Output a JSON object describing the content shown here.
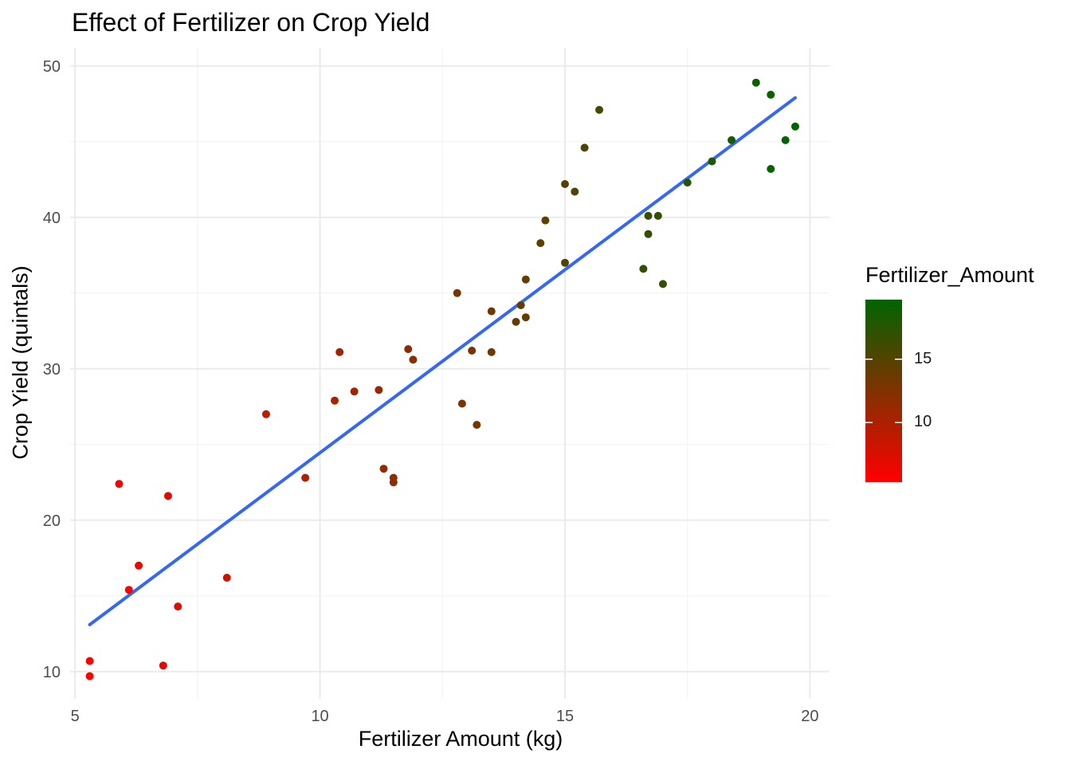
{
  "chart_data": {
    "type": "scatter",
    "title": "Effect of Fertilizer on Crop Yield",
    "xlabel": "Fertilizer Amount (kg)",
    "ylabel": "Crop Yield (quintals)",
    "xlim": [
      4.9,
      20.4
    ],
    "ylim": [
      8.2,
      51.2
    ],
    "x_ticks": [
      5,
      10,
      15,
      20
    ],
    "y_ticks": [
      10,
      20,
      30,
      40,
      50
    ],
    "grid": true,
    "points": [
      {
        "x": 5.3,
        "y": 10.7
      },
      {
        "x": 5.3,
        "y": 9.7
      },
      {
        "x": 5.9,
        "y": 22.4
      },
      {
        "x": 6.1,
        "y": 15.4
      },
      {
        "x": 6.3,
        "y": 17.0
      },
      {
        "x": 6.8,
        "y": 10.4
      },
      {
        "x": 6.9,
        "y": 21.6
      },
      {
        "x": 7.1,
        "y": 14.3
      },
      {
        "x": 8.1,
        "y": 16.2
      },
      {
        "x": 8.9,
        "y": 27.0
      },
      {
        "x": 9.7,
        "y": 22.8
      },
      {
        "x": 10.3,
        "y": 27.9
      },
      {
        "x": 10.4,
        "y": 31.1
      },
      {
        "x": 10.7,
        "y": 28.5
      },
      {
        "x": 11.2,
        "y": 28.6
      },
      {
        "x": 11.3,
        "y": 23.4
      },
      {
        "x": 11.5,
        "y": 22.8
      },
      {
        "x": 11.5,
        "y": 22.5
      },
      {
        "x": 11.8,
        "y": 31.3
      },
      {
        "x": 11.9,
        "y": 30.6
      },
      {
        "x": 12.8,
        "y": 35.0
      },
      {
        "x": 12.9,
        "y": 27.7
      },
      {
        "x": 13.1,
        "y": 31.2
      },
      {
        "x": 13.2,
        "y": 26.3
      },
      {
        "x": 13.5,
        "y": 33.8
      },
      {
        "x": 13.5,
        "y": 31.1
      },
      {
        "x": 14.0,
        "y": 33.1
      },
      {
        "x": 14.1,
        "y": 34.2
      },
      {
        "x": 14.2,
        "y": 35.9
      },
      {
        "x": 14.2,
        "y": 33.4
      },
      {
        "x": 14.5,
        "y": 38.3
      },
      {
        "x": 14.6,
        "y": 39.8
      },
      {
        "x": 15.0,
        "y": 42.2
      },
      {
        "x": 15.0,
        "y": 37.0
      },
      {
        "x": 15.2,
        "y": 41.7
      },
      {
        "x": 15.4,
        "y": 44.6
      },
      {
        "x": 15.7,
        "y": 47.1
      },
      {
        "x": 16.6,
        "y": 36.6
      },
      {
        "x": 16.7,
        "y": 40.1
      },
      {
        "x": 16.7,
        "y": 38.9
      },
      {
        "x": 16.9,
        "y": 40.1
      },
      {
        "x": 17.0,
        "y": 35.6
      },
      {
        "x": 17.5,
        "y": 42.3
      },
      {
        "x": 18.0,
        "y": 43.7
      },
      {
        "x": 18.4,
        "y": 45.1
      },
      {
        "x": 18.9,
        "y": 48.9
      },
      {
        "x": 19.2,
        "y": 48.1
      },
      {
        "x": 19.2,
        "y": 43.2
      },
      {
        "x": 19.5,
        "y": 45.1
      },
      {
        "x": 19.7,
        "y": 46.0
      }
    ],
    "fit_line": {
      "x": [
        5.3,
        19.7
      ],
      "y": [
        13.1,
        47.9
      ],
      "color": "#3366FF"
    },
    "color_scale": {
      "title": "Fertilizer_Amount",
      "low_color": "#FF0000",
      "high_color": "#006400",
      "min": 5.3,
      "max": 19.7,
      "tick_labels": [
        "10",
        "15"
      ],
      "tick_values": [
        10,
        15
      ]
    }
  }
}
